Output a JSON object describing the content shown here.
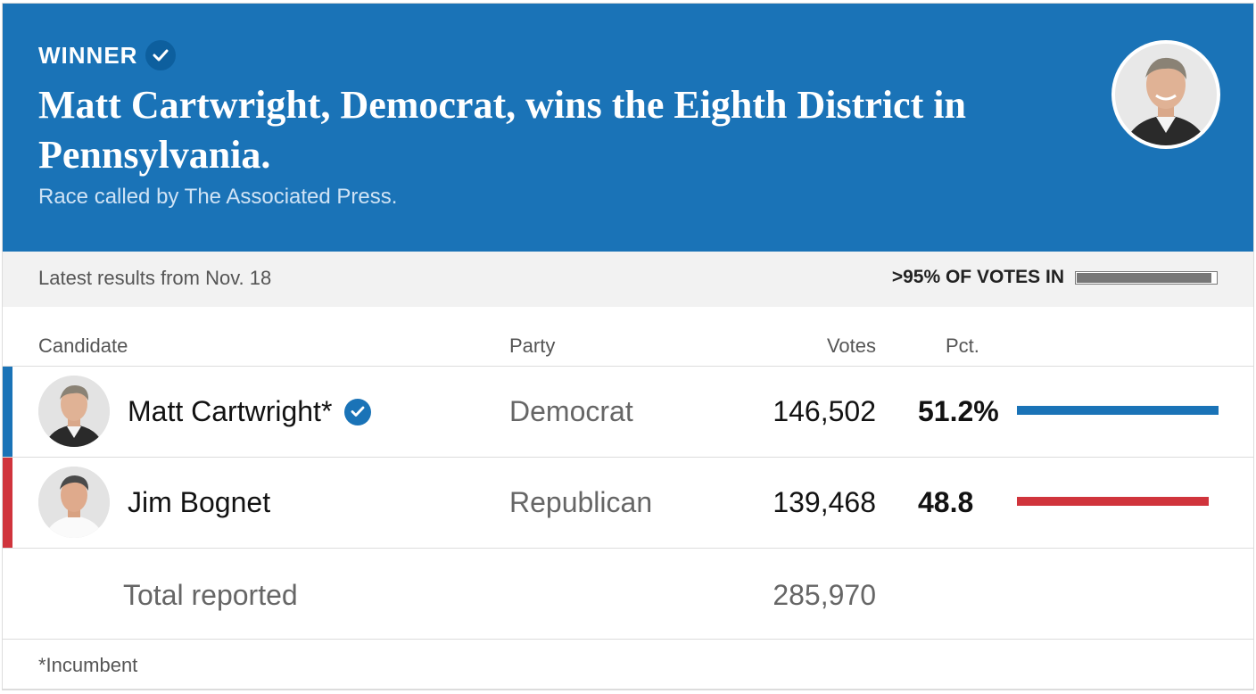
{
  "header": {
    "winner_label": "WINNER",
    "headline": "Matt Cartwright, Democrat, wins the Eighth District in Pennsylvania.",
    "called_by": "Race called by The Associated Press.",
    "banner_color": "#1a73b7"
  },
  "status": {
    "latest": "Latest results from Nov. 18",
    "votes_in_label": ">95% OF VOTES IN",
    "reporting_fraction": 0.97
  },
  "table": {
    "headers": {
      "candidate": "Candidate",
      "party": "Party",
      "votes": "Votes",
      "pct": "Pct."
    },
    "rows": [
      {
        "name": "Matt Cartwright*",
        "party": "Democrat",
        "votes": "146,502",
        "pct": "51.2%",
        "pct_value": 51.2,
        "winner": true,
        "color": "#1a73b7"
      },
      {
        "name": "Jim Bognet",
        "party": "Republican",
        "votes": "139,468",
        "pct": "48.8",
        "pct_value": 48.8,
        "winner": false,
        "color": "#d0343c"
      }
    ],
    "total_label": "Total reported",
    "total_votes": "285,970"
  },
  "footnote": "*Incumbent"
}
